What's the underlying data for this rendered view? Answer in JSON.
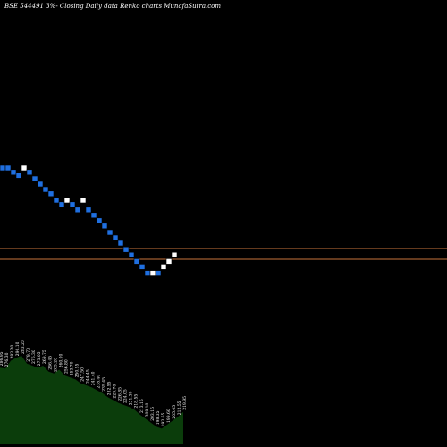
{
  "chart_data": {
    "type": "renko",
    "title": "BSE 544491 3%- Closing Daily data Renko charts MunafaSutra.com",
    "colors": {
      "background": "#000000",
      "up_brick": "#ffffff",
      "down_brick": "#1f6fe0",
      "reference_line": "#c8743c",
      "volume_fill": "#0b3d0b"
    },
    "price_range": [
      90,
      340
    ],
    "bricks": [
      {
        "price": 300,
        "dir": "down"
      },
      {
        "price": 300,
        "dir": "down"
      },
      {
        "price": 296,
        "dir": "down"
      },
      {
        "price": 293,
        "dir": "down"
      },
      {
        "price": 300,
        "dir": "up"
      },
      {
        "price": 296,
        "dir": "down"
      },
      {
        "price": 290,
        "dir": "down"
      },
      {
        "price": 285,
        "dir": "down"
      },
      {
        "price": 280,
        "dir": "down"
      },
      {
        "price": 276,
        "dir": "down"
      },
      {
        "price": 270,
        "dir": "down"
      },
      {
        "price": 266,
        "dir": "down"
      },
      {
        "price": 270,
        "dir": "up"
      },
      {
        "price": 266,
        "dir": "down"
      },
      {
        "price": 261,
        "dir": "down"
      },
      {
        "price": 270,
        "dir": "up"
      },
      {
        "price": 261,
        "dir": "down"
      },
      {
        "price": 256,
        "dir": "down"
      },
      {
        "price": 251,
        "dir": "down"
      },
      {
        "price": 246,
        "dir": "down"
      },
      {
        "price": 240,
        "dir": "down"
      },
      {
        "price": 235,
        "dir": "down"
      },
      {
        "price": 230,
        "dir": "down"
      },
      {
        "price": 224,
        "dir": "down"
      },
      {
        "price": 219,
        "dir": "down"
      },
      {
        "price": 213,
        "dir": "down"
      },
      {
        "price": 208,
        "dir": "down"
      },
      {
        "price": 202,
        "dir": "down"
      },
      {
        "price": 202,
        "dir": "up"
      },
      {
        "price": 202,
        "dir": "down"
      },
      {
        "price": 208,
        "dir": "up"
      },
      {
        "price": 213,
        "dir": "up"
      },
      {
        "price": 219,
        "dir": "up"
      }
    ],
    "reference_lines": [
      225,
      215
    ],
    "volume_labels": [
      "286.95",
      "276.30",
      "283.20",
      "290.10",
      "283.20",
      "279.70",
      "276.30",
      "273.05",
      "269.75",
      "266.45",
      "263.20",
      "260.00",
      "256.80",
      "253.70",
      "250.55",
      "247.50",
      "244.45",
      "241.40",
      "238.40",
      "235.45",
      "232.55",
      "229.70",
      "226.85",
      "224.05",
      "221.30",
      "218.55",
      "213.15",
      "208.10",
      "203.15",
      "198.35",
      "193.65",
      "199.60",
      "205.05",
      "212.55",
      "219.95"
    ],
    "volume_heights": [
      0.78,
      0.77,
      0.85,
      0.88,
      0.9,
      0.82,
      0.8,
      0.78,
      0.8,
      0.74,
      0.72,
      0.76,
      0.7,
      0.68,
      0.66,
      0.62,
      0.6,
      0.58,
      0.55,
      0.52,
      0.48,
      0.45,
      0.42,
      0.4,
      0.38,
      0.35,
      0.3,
      0.26,
      0.22,
      0.18,
      0.16,
      0.2,
      0.24,
      0.28,
      0.33
    ]
  }
}
